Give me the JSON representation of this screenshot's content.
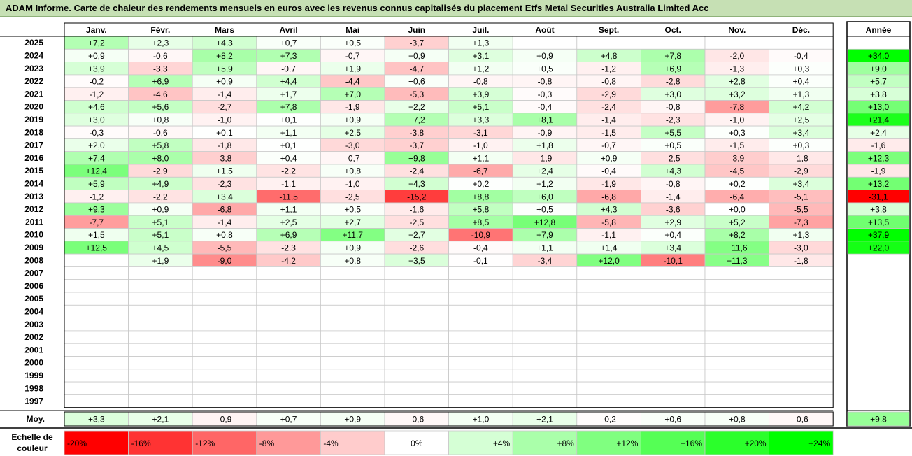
{
  "title": "ADAM Informe. Carte de chaleur des rendements mensuels en euros avec les revenus connus capitalisés du placement Etfs Metal Securities Australia Limited Acc",
  "chart_data": {
    "type": "heatmap",
    "months": [
      "Janv.",
      "Févr.",
      "Mars",
      "Avril",
      "Mai",
      "Juin",
      "Juil.",
      "Août",
      "Sept.",
      "Oct.",
      "Nov.",
      "Déc."
    ],
    "year_header": "Année",
    "rows": [
      {
        "year": "2025",
        "m": [
          "+7,2",
          "+2,3",
          "+4,3",
          "+0,7",
          "+0,5",
          "-3,7",
          "+1,3",
          "",
          "",
          "",
          "",
          ""
        ],
        "y": ""
      },
      {
        "year": "2024",
        "m": [
          "+0,9",
          "-0,6",
          "+8,2",
          "+7,3",
          "-0,7",
          "+0,9",
          "+3,1",
          "+0,9",
          "+4,8",
          "+7,8",
          "-2,0",
          "-0,4"
        ],
        "y": "+34,0"
      },
      {
        "year": "2023",
        "m": [
          "+3,9",
          "-3,3",
          "+5,9",
          "-0,7",
          "+1,9",
          "-4,7",
          "+1,2",
          "+0,5",
          "-1,2",
          "+6,9",
          "-1,3",
          "+0,3"
        ],
        "y": "+9,0"
      },
      {
        "year": "2022",
        "m": [
          "-0,2",
          "+6,9",
          "+0,9",
          "+4,4",
          "-4,4",
          "+0,6",
          "-0,8",
          "-0,8",
          "-0,8",
          "-2,8",
          "+2,8",
          "+0,4"
        ],
        "y": "+5,7"
      },
      {
        "year": "2021",
        "m": [
          "-1,2",
          "-4,6",
          "-1,4",
          "+1,7",
          "+7,0",
          "-5,3",
          "+3,9",
          "-0,3",
          "-2,9",
          "+3,0",
          "+3,2",
          "+1,3"
        ],
        "y": "+3,8"
      },
      {
        "year": "2020",
        "m": [
          "+4,6",
          "+5,6",
          "-2,7",
          "+7,8",
          "-1,9",
          "+2,2",
          "+5,1",
          "-0,4",
          "-2,4",
          "-0,8",
          "-7,8",
          "+4,2"
        ],
        "y": "+13,0"
      },
      {
        "year": "2019",
        "m": [
          "+3,0",
          "+0,8",
          "-1,0",
          "+0,1",
          "+0,9",
          "+7,2",
          "+3,3",
          "+8,1",
          "-1,4",
          "-2,3",
          "-1,0",
          "+2,5"
        ],
        "y": "+21,4"
      },
      {
        "year": "2018",
        "m": [
          "-0,3",
          "-0,6",
          "+0,1",
          "+1,1",
          "+2,5",
          "-3,8",
          "-3,1",
          "-0,9",
          "-1,5",
          "+5,5",
          "+0,3",
          "+3,4"
        ],
        "y": "+2,4"
      },
      {
        "year": "2017",
        "m": [
          "+2,0",
          "+5,8",
          "-1,8",
          "+0,1",
          "-3,0",
          "-3,7",
          "-1,0",
          "+1,8",
          "-0,7",
          "+0,5",
          "-1,5",
          "+0,3"
        ],
        "y": "-1,6"
      },
      {
        "year": "2016",
        "m": [
          "+7,4",
          "+8,0",
          "-3,8",
          "+0,4",
          "-0,7",
          "+9,8",
          "+1,1",
          "-1,9",
          "+0,9",
          "-2,5",
          "-3,9",
          "-1,8"
        ],
        "y": "+12,3"
      },
      {
        "year": "2015",
        "m": [
          "+12,4",
          "-2,9",
          "+1,5",
          "-2,2",
          "+0,8",
          "-2,4",
          "-6,7",
          "+2,4",
          "-0,4",
          "+4,3",
          "-4,5",
          "-2,9"
        ],
        "y": "-1,9"
      },
      {
        "year": "2014",
        "m": [
          "+5,9",
          "+4,9",
          "-2,3",
          "-1,1",
          "-1,0",
          "+4,3",
          "+0,2",
          "+1,2",
          "-1,9",
          "-0,8",
          "+0,2",
          "+3,4"
        ],
        "y": "+13,2"
      },
      {
        "year": "2013",
        "m": [
          "-1,2",
          "-2,2",
          "+3,4",
          "-11,5",
          "-2,5",
          "-15,2",
          "+8,8",
          "+6,0",
          "-6,8",
          "-1,4",
          "-6,4",
          "-5,1"
        ],
        "y": "-31,1"
      },
      {
        "year": "2012",
        "m": [
          "+9,3",
          "+0,9",
          "-6,8",
          "+1,1",
          "+0,5",
          "-1,6",
          "+5,8",
          "+0,5",
          "+4,3",
          "-3,6",
          "+0,0",
          "-5,5"
        ],
        "y": "+3,8"
      },
      {
        "year": "2011",
        "m": [
          "-7,7",
          "+5,1",
          "-1,4",
          "+2,5",
          "+2,7",
          "-2,5",
          "+8,5",
          "+12,8",
          "-5,8",
          "+2,9",
          "+5,2",
          "-7,3"
        ],
        "y": "+13,5"
      },
      {
        "year": "2010",
        "m": [
          "+1,5",
          "+5,1",
          "+0,8",
          "+6,9",
          "+11,7",
          "+2,7",
          "-10,9",
          "+7,9",
          "-1,1",
          "+0,4",
          "+8,2",
          "+1,3"
        ],
        "y": "+37,9"
      },
      {
        "year": "2009",
        "m": [
          "+12,5",
          "+4,5",
          "-5,5",
          "-2,3",
          "+0,9",
          "-2,6",
          "-0,4",
          "+1,1",
          "+1,4",
          "+3,4",
          "+11,6",
          "-3,0"
        ],
        "y": "+22,0"
      },
      {
        "year": "2008",
        "m": [
          "",
          "+1,9",
          "-9,0",
          "-4,2",
          "+0,8",
          "+3,5",
          "-0,1",
          "-3,4",
          "+12,0",
          "-10,1",
          "+11,3",
          "-1,8"
        ],
        "y": ""
      },
      {
        "year": "2007",
        "m": [
          "",
          "",
          "",
          "",
          "",
          "",
          "",
          "",
          "",
          "",
          "",
          ""
        ],
        "y": ""
      },
      {
        "year": "2006",
        "m": [
          "",
          "",
          "",
          "",
          "",
          "",
          "",
          "",
          "",
          "",
          "",
          ""
        ],
        "y": ""
      },
      {
        "year": "2005",
        "m": [
          "",
          "",
          "",
          "",
          "",
          "",
          "",
          "",
          "",
          "",
          "",
          ""
        ],
        "y": ""
      },
      {
        "year": "2004",
        "m": [
          "",
          "",
          "",
          "",
          "",
          "",
          "",
          "",
          "",
          "",
          "",
          ""
        ],
        "y": ""
      },
      {
        "year": "2003",
        "m": [
          "",
          "",
          "",
          "",
          "",
          "",
          "",
          "",
          "",
          "",
          "",
          ""
        ],
        "y": ""
      },
      {
        "year": "2002",
        "m": [
          "",
          "",
          "",
          "",
          "",
          "",
          "",
          "",
          "",
          "",
          "",
          ""
        ],
        "y": ""
      },
      {
        "year": "2001",
        "m": [
          "",
          "",
          "",
          "",
          "",
          "",
          "",
          "",
          "",
          "",
          "",
          ""
        ],
        "y": ""
      },
      {
        "year": "2000",
        "m": [
          "",
          "",
          "",
          "",
          "",
          "",
          "",
          "",
          "",
          "",
          "",
          ""
        ],
        "y": ""
      },
      {
        "year": "1999",
        "m": [
          "",
          "",
          "",
          "",
          "",
          "",
          "",
          "",
          "",
          "",
          "",
          ""
        ],
        "y": ""
      },
      {
        "year": "1998",
        "m": [
          "",
          "",
          "",
          "",
          "",
          "",
          "",
          "",
          "",
          "",
          "",
          ""
        ],
        "y": ""
      },
      {
        "year": "1997",
        "m": [
          "",
          "",
          "",
          "",
          "",
          "",
          "",
          "",
          "",
          "",
          "",
          ""
        ],
        "y": ""
      }
    ],
    "avg_label": "Moy.",
    "averages": [
      "+3,3",
      "+2,1",
      "-0,9",
      "+0,7",
      "+0,9",
      "-0,6",
      "+1,0",
      "+2,1",
      "-0,2",
      "+0,6",
      "+0,8",
      "-0,6"
    ],
    "avg_year": "+9,8",
    "scale_label": [
      "Echelle de",
      "couleur"
    ],
    "scale": [
      "-20%",
      "-16%",
      "-12%",
      "-8%",
      "-4%",
      "0%",
      "+4%",
      "+8%",
      "+12%",
      "+16%",
      "+20%",
      "+24%"
    ]
  },
  "colors": {
    "negative_max": "#ff0000",
    "neutral": "#ffffff",
    "positive_max": "#00ff00",
    "title_bg": "#c6e0b4"
  }
}
